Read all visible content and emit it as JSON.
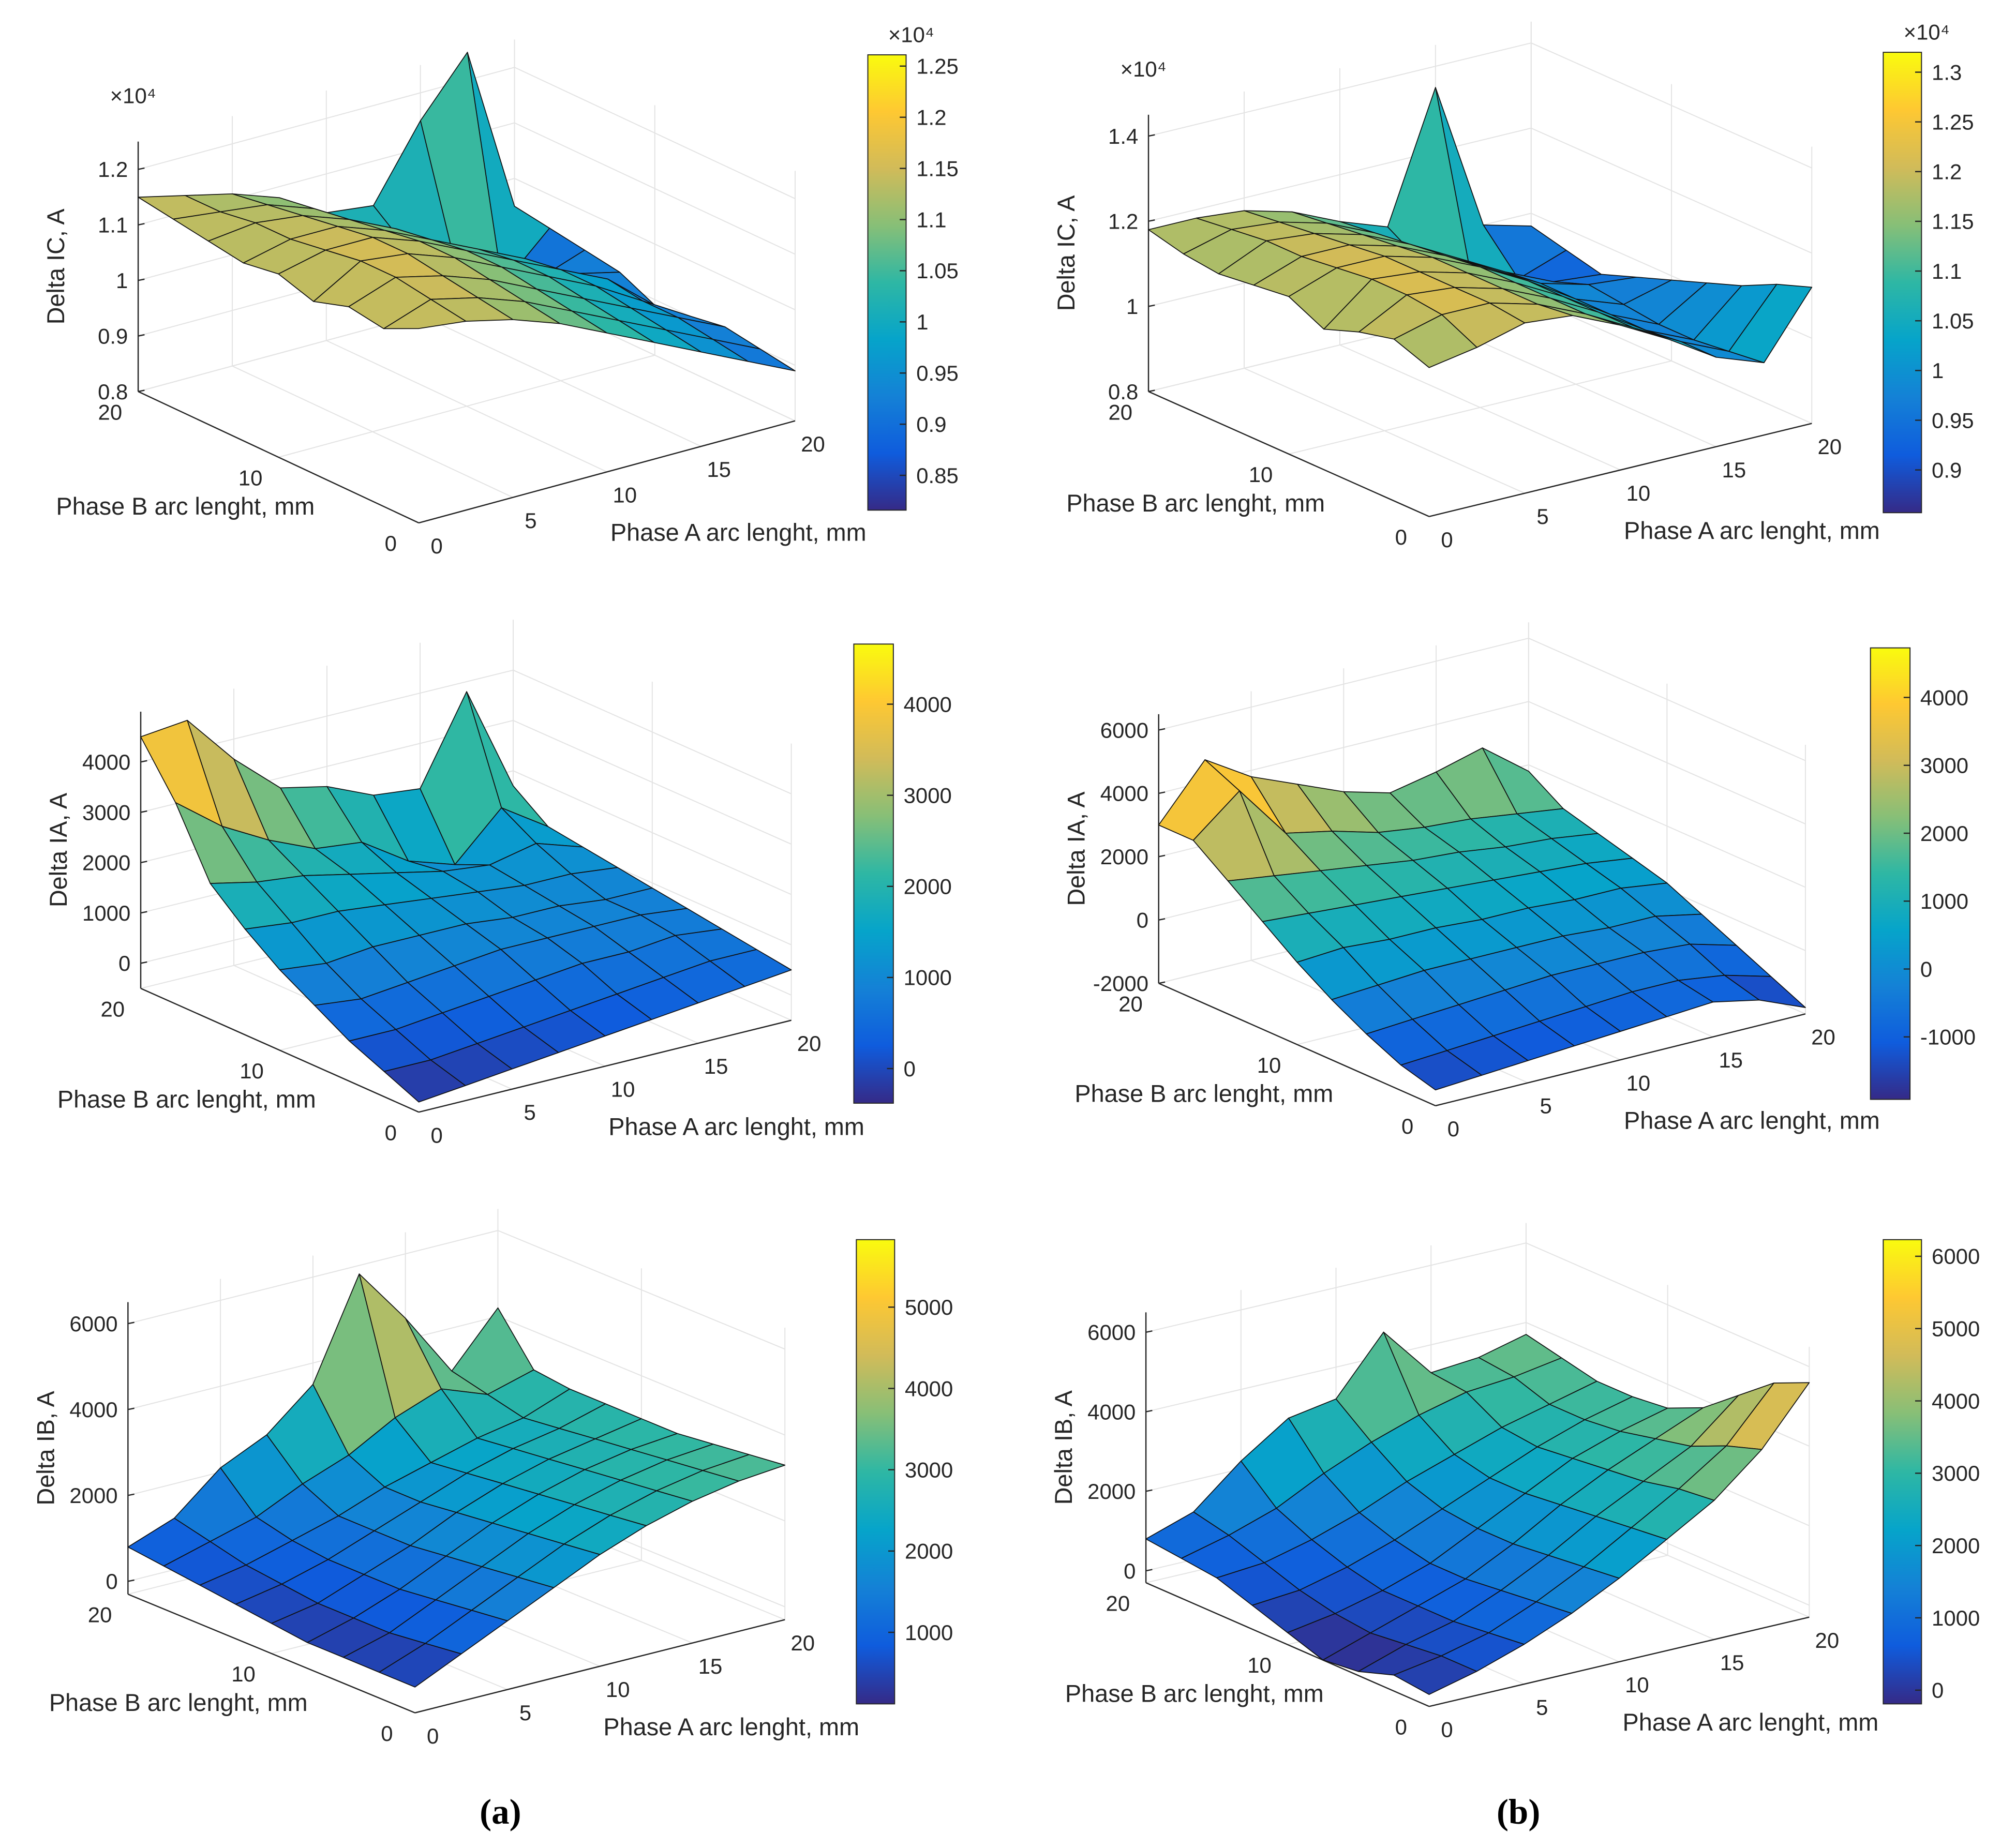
{
  "figure_labels": [
    "(a)",
    "(b)"
  ],
  "chart_data": [
    {
      "id": "ic_a",
      "type": "surface",
      "column": "(a)",
      "z_label": "Delta IC, A",
      "x_label": "Phase A arc lenght, mm",
      "y_label": "Phase B arc lenght, mm",
      "x": [
        0,
        2.5,
        5,
        7.5,
        10,
        12.5,
        15,
        17.5,
        20
      ],
      "y": [
        0,
        2.5,
        5,
        7.5,
        10,
        12.5,
        15,
        17.5,
        20
      ],
      "xlim": [
        0,
        20
      ],
      "ylim": [
        0,
        20
      ],
      "zlim": [
        8000,
        12500
      ],
      "x_ticks": [
        "0",
        "5",
        "10",
        "15",
        "20"
      ],
      "y_ticks": [
        "0",
        "10",
        "20"
      ],
      "z_ticks": [
        {
          "v": 8000,
          "label": "0.8"
        },
        {
          "v": 9000,
          "label": "0.9"
        },
        {
          "v": 10000,
          "label": "1"
        },
        {
          "v": 11000,
          "label": "1.1"
        },
        {
          "v": 12000,
          "label": "1.2"
        }
      ],
      "z_exponent": "×10⁴",
      "clim": [
        8160,
        12610
      ],
      "cbar_ticks": [
        {
          "v": 8500,
          "label": "0.85"
        },
        {
          "v": 9000,
          "label": "0.9"
        },
        {
          "v": 9500,
          "label": "0.95"
        },
        {
          "v": 10000,
          "label": "1"
        },
        {
          "v": 10500,
          "label": "1.05"
        },
        {
          "v": 11000,
          "label": "1.1"
        },
        {
          "v": 11500,
          "label": "1.15"
        },
        {
          "v": 12000,
          "label": "1.2"
        },
        {
          "v": 12500,
          "label": "1.25"
        }
      ],
      "cbar_exponent": "×10⁴",
      "z": [
        [
          11500,
          11400,
          11200,
          10900,
          10500,
          10100,
          9700,
          9300,
          8900
        ],
        [
          11200,
          11500,
          11300,
          11000,
          10600,
          10200,
          9800,
          9400,
          9000
        ],
        [
          11300,
          11600,
          11400,
          11100,
          10700,
          10300,
          9900,
          9500,
          9100
        ],
        [
          11100,
          11600,
          11500,
          11200,
          10800,
          10400,
          10000,
          9500,
          9000
        ],
        [
          11300,
          11500,
          11500,
          11200,
          10800,
          10400,
          10000,
          9600,
          8900
        ],
        [
          11200,
          11400,
          11400,
          11100,
          10700,
          10300,
          9900,
          9400,
          9200
        ],
        [
          11300,
          11400,
          11300,
          11000,
          10600,
          10100,
          9500,
          9000,
          9300
        ],
        [
          11400,
          11300,
          11200,
          10900,
          10400,
          9700,
          9200,
          8600,
          9400
        ],
        [
          11500,
          11300,
          11100,
          10800,
          10300,
          10200,
          11500,
          12500,
          9500
        ]
      ]
    },
    {
      "id": "ic_b",
      "type": "surface",
      "column": "(b)",
      "z_label": "Delta IC, A",
      "x_label": "Phase A arc lenght, mm",
      "y_label": "Phase B arc lenght, mm",
      "x": [
        0,
        2.5,
        5,
        7.5,
        10,
        12.5,
        15,
        17.5,
        20
      ],
      "y": [
        0,
        2.5,
        5,
        7.5,
        10,
        12.5,
        15,
        17.5,
        20
      ],
      "xlim": [
        0,
        20
      ],
      "ylim": [
        0,
        20
      ],
      "zlim": [
        8000,
        14500
      ],
      "x_ticks": [
        "0",
        "5",
        "10",
        "15",
        "20"
      ],
      "y_ticks": [
        "0",
        "10",
        "20"
      ],
      "z_ticks": [
        {
          "v": 8000,
          "label": "0.8"
        },
        {
          "v": 10000,
          "label": "1"
        },
        {
          "v": 12000,
          "label": "1.2"
        },
        {
          "v": 14000,
          "label": "1.4"
        }
      ],
      "z_exponent": "×10⁴",
      "clim": [
        8570,
        13200
      ],
      "cbar_ticks": [
        {
          "v": 9000,
          "label": "0.9"
        },
        {
          "v": 9500,
          "label": "0.95"
        },
        {
          "v": 10000,
          "label": "1"
        },
        {
          "v": 10500,
          "label": "1.05"
        },
        {
          "v": 11000,
          "label": "1.1"
        },
        {
          "v": 11500,
          "label": "1.15"
        },
        {
          "v": 12000,
          "label": "1.2"
        },
        {
          "v": 12500,
          "label": "1.25"
        },
        {
          "v": 13000,
          "label": "1.3"
        }
      ],
      "cbar_exponent": "×10⁴",
      "z": [
        [
          11500,
          11700,
          12000,
          11900,
          11400,
          10800,
          10100,
          9700,
          11200
        ],
        [
          11800,
          12100,
          12100,
          11800,
          11300,
          10700,
          10100,
          9600,
          10900
        ],
        [
          11600,
          12200,
          12100,
          11800,
          11300,
          10700,
          10000,
          9500,
          10500
        ],
        [
          11300,
          12200,
          12100,
          11800,
          11300,
          10700,
          10000,
          9500,
          10200
        ],
        [
          11700,
          12100,
          12100,
          11800,
          11300,
          10700,
          10000,
          9600,
          9900
        ],
        [
          11600,
          12000,
          12000,
          11700,
          11200,
          10600,
          10000,
          9700,
          9600
        ],
        [
          11500,
          12000,
          11900,
          11600,
          11100,
          10500,
          9900,
          9400,
          9300
        ],
        [
          11600,
          11900,
          11800,
          11500,
          11000,
          10000,
          9500,
          9100,
          9500
        ],
        [
          11800,
          11800,
          11700,
          11400,
          10900,
          10500,
          13500,
          10000,
          9700
        ]
      ]
    },
    {
      "id": "ia_a",
      "type": "surface",
      "column": "(a)",
      "z_label": "Delta IA, A",
      "x_label": "Phase A arc lenght, mm",
      "y_label": "Phase B arc lenght, mm",
      "x": [
        0,
        2.5,
        5,
        7.5,
        10,
        12.5,
        15,
        17.5,
        20
      ],
      "y": [
        0,
        2.5,
        5,
        7.5,
        10,
        12.5,
        15,
        17.5,
        20
      ],
      "xlim": [
        0,
        20
      ],
      "ylim": [
        0,
        20
      ],
      "zlim": [
        -500,
        5000
      ],
      "x_ticks": [
        "0",
        "5",
        "10",
        "15",
        "20"
      ],
      "y_ticks": [
        "0",
        "10",
        "20"
      ],
      "z_ticks": [
        {
          "v": 0,
          "label": "0"
        },
        {
          "v": 1000,
          "label": "1000"
        },
        {
          "v": 2000,
          "label": "2000"
        },
        {
          "v": 3000,
          "label": "3000"
        },
        {
          "v": 4000,
          "label": "4000"
        }
      ],
      "z_exponent": "",
      "clim": [
        -380,
        4660
      ],
      "cbar_ticks": [
        {
          "v": 0,
          "label": "0"
        },
        {
          "v": 1000,
          "label": "1000"
        },
        {
          "v": 2000,
          "label": "2000"
        },
        {
          "v": 3000,
          "label": "3000"
        },
        {
          "v": 4000,
          "label": "4000"
        }
      ],
      "cbar_exponent": "",
      "z": [
        [
          -300,
          -200,
          -100,
          0,
          100,
          200,
          300,
          400,
          500
        ],
        [
          0,
          0,
          100,
          200,
          300,
          400,
          500,
          600,
          600
        ],
        [
          300,
          300,
          400,
          500,
          600,
          700,
          700,
          800,
          700
        ],
        [
          700,
          600,
          700,
          800,
          900,
          900,
          900,
          900,
          800
        ],
        [
          1100,
          1000,
          1100,
          1100,
          1100,
          1000,
          1000,
          900,
          900
        ],
        [
          1600,
          1500,
          1500,
          1400,
          1300,
          1200,
          1100,
          1100,
          1000
        ],
        [
          2200,
          2000,
          1900,
          1700,
          1500,
          1300,
          1200,
          1400,
          1100
        ],
        [
          3500,
          2800,
          2300,
          1900,
          1800,
          1200,
          900,
          1800,
          1200
        ],
        [
          4500,
          4600,
          3600,
          2800,
          2600,
          2200,
          2100,
          3800,
          1700
        ]
      ]
    },
    {
      "id": "ia_b",
      "type": "surface",
      "column": "(b)",
      "z_label": "Delta IA, A",
      "x_label": "Phase A arc lenght, mm",
      "y_label": "Phase B arc lenght, mm",
      "x": [
        0,
        2.5,
        5,
        7.5,
        10,
        12.5,
        15,
        17.5,
        20
      ],
      "y": [
        0,
        2.5,
        5,
        7.5,
        10,
        12.5,
        15,
        17.5,
        20
      ],
      "xlim": [
        0,
        20
      ],
      "ylim": [
        0,
        20
      ],
      "zlim": [
        -2000,
        6500
      ],
      "x_ticks": [
        "0",
        "5",
        "10",
        "15",
        "20"
      ],
      "y_ticks": [
        "0",
        "10",
        "20"
      ],
      "z_ticks": [
        {
          "v": -2000,
          "label": "-2000"
        },
        {
          "v": 0,
          "label": "0"
        },
        {
          "v": 2000,
          "label": "2000"
        },
        {
          "v": 4000,
          "label": "4000"
        },
        {
          "v": 6000,
          "label": "6000"
        }
      ],
      "z_exponent": "",
      "clim": [
        -1920,
        4730
      ],
      "cbar_ticks": [
        {
          "v": -1000,
          "label": "-1000"
        },
        {
          "v": 0,
          "label": "0"
        },
        {
          "v": 1000,
          "label": "1000"
        },
        {
          "v": 2000,
          "label": "2000"
        },
        {
          "v": 3000,
          "label": "3000"
        },
        {
          "v": 4000,
          "label": "4000"
        }
      ],
      "cbar_exponent": "",
      "z": [
        [
          -1500,
          -1400,
          -1300,
          -1200,
          -1100,
          -1000,
          -900,
          -1200,
          -1800
        ],
        [
          -1200,
          -1100,
          -1000,
          -900,
          -800,
          -700,
          -700,
          -900,
          -1300
        ],
        [
          -700,
          -600,
          -500,
          -400,
          -300,
          -300,
          -300,
          -400,
          -800
        ],
        [
          -100,
          0,
          100,
          100,
          100,
          100,
          0,
          0,
          -300
        ],
        [
          600,
          700,
          600,
          600,
          500,
          500,
          400,
          400,
          200
        ],
        [
          1400,
          1300,
          1200,
          1100,
          1000,
          900,
          800,
          700,
          500
        ],
        [
          2200,
          2000,
          1800,
          1600,
          1400,
          1300,
          1100,
          1000,
          800
        ],
        [
          3000,
          4200,
          2500,
          2200,
          1800,
          1600,
          1500,
          1300,
          1100
        ],
        [
          3000,
          4700,
          3800,
          3200,
          2600,
          2200,
          2500,
          2900,
          1800
        ]
      ]
    },
    {
      "id": "ib_a",
      "type": "surface",
      "column": "(a)",
      "z_label": "Delta IB, A",
      "x_label": "Phase A arc lenght, mm",
      "y_label": "Phase B arc lenght, mm",
      "x": [
        0,
        2.5,
        5,
        7.5,
        10,
        12.5,
        15,
        17.5,
        20
      ],
      "y": [
        0,
        2.5,
        5,
        7.5,
        10,
        12.5,
        15,
        17.5,
        20
      ],
      "xlim": [
        0,
        20
      ],
      "ylim": [
        0,
        20
      ],
      "zlim": [
        -300,
        6500
      ],
      "x_ticks": [
        "0",
        "5",
        "10",
        "15",
        "20"
      ],
      "y_ticks": [
        "0",
        "10",
        "20"
      ],
      "z_ticks": [
        {
          "v": 0,
          "label": "0"
        },
        {
          "v": 2000,
          "label": "2000"
        },
        {
          "v": 4000,
          "label": "4000"
        },
        {
          "v": 6000,
          "label": "6000"
        }
      ],
      "z_exponent": "",
      "clim": [
        120,
        5830
      ],
      "cbar_ticks": [
        {
          "v": 1000,
          "label": "1000"
        },
        {
          "v": 2000,
          "label": "2000"
        },
        {
          "v": 3000,
          "label": "3000"
        },
        {
          "v": 4000,
          "label": "4000"
        },
        {
          "v": 5000,
          "label": "5000"
        }
      ],
      "cbar_exponent": "",
      "z": [
        [
          300,
          800,
          1300,
          1800,
          2300,
          2700,
          3000,
          3200,
          3300
        ],
        [
          300,
          700,
          1200,
          1700,
          2200,
          2600,
          2900,
          3100,
          3200
        ],
        [
          300,
          600,
          1100,
          1600,
          2100,
          2500,
          2800,
          3000,
          3100
        ],
        [
          300,
          600,
          1000,
          1500,
          2000,
          2400,
          2700,
          2900,
          3000
        ],
        [
          400,
          600,
          1000,
          1400,
          1900,
          2300,
          2600,
          2800,
          3000
        ],
        [
          500,
          700,
          1000,
          1400,
          1800,
          2200,
          2500,
          2700,
          3000
        ],
        [
          600,
          800,
          1100,
          1400,
          1800,
          2100,
          2400,
          2600,
          3000
        ],
        [
          700,
          1000,
          1300,
          1800,
          2200,
          2800,
          3200,
          2800,
          3100
        ],
        [
          800,
          1200,
          2100,
          2600,
          3500,
          5800,
          4500,
          3000,
          4200
        ]
      ]
    },
    {
      "id": "ib_b",
      "type": "surface",
      "column": "(b)",
      "z_label": "Delta IB, A",
      "x_label": "Phase A arc lenght, mm",
      "y_label": "Phase B arc lenght, mm",
      "x": [
        0,
        2.5,
        5,
        7.5,
        10,
        12.5,
        15,
        17.5,
        20
      ],
      "y": [
        0,
        2.5,
        5,
        7.5,
        10,
        12.5,
        15,
        17.5,
        20
      ],
      "xlim": [
        0,
        20
      ],
      "ylim": [
        0,
        20
      ],
      "zlim": [
        -300,
        6500
      ],
      "x_ticks": [
        "0",
        "5",
        "10",
        "15",
        "20"
      ],
      "y_ticks": [
        "0",
        "10",
        "20"
      ],
      "z_ticks": [
        {
          "v": 0,
          "label": "0"
        },
        {
          "v": 2000,
          "label": "2000"
        },
        {
          "v": 4000,
          "label": "4000"
        },
        {
          "v": 6000,
          "label": "6000"
        }
      ],
      "z_exponent": "",
      "clim": [
        -190,
        6230
      ],
      "cbar_ticks": [
        {
          "v": 0,
          "label": "0"
        },
        {
          "v": 1000,
          "label": "1000"
        },
        {
          "v": 2000,
          "label": "2000"
        },
        {
          "v": 3000,
          "label": "3000"
        },
        {
          "v": 4000,
          "label": "4000"
        },
        {
          "v": 5000,
          "label": "5000"
        },
        {
          "v": 6000,
          "label": "6000"
        }
      ],
      "cbar_exponent": "",
      "z": [
        [
          0,
          300,
          700,
          1200,
          1800,
          2500,
          3200,
          4200,
          5600
        ],
        [
          100,
          300,
          600,
          1100,
          1700,
          2400,
          3100,
          3900,
          5200
        ],
        [
          -200,
          200,
          500,
          1000,
          1600,
          2300,
          2900,
          3500,
          4500
        ],
        [
          -300,
          100,
          500,
          900,
          1500,
          2200,
          2800,
          3300,
          3800
        ],
        [
          0,
          200,
          500,
          900,
          1500,
          2100,
          2700,
          3100,
          3400
        ],
        [
          300,
          400,
          700,
          1100,
          1600,
          2100,
          2600,
          3000,
          3300
        ],
        [
          600,
          700,
          1000,
          1400,
          1900,
          2300,
          2700,
          3000,
          3300
        ],
        [
          700,
          1000,
          1400,
          2000,
          2500,
          2900,
          3200,
          3300,
          3500
        ],
        [
          800,
          1200,
          2200,
          3000,
          3200,
          4600,
          3300,
          3400,
          3700
        ]
      ]
    }
  ]
}
